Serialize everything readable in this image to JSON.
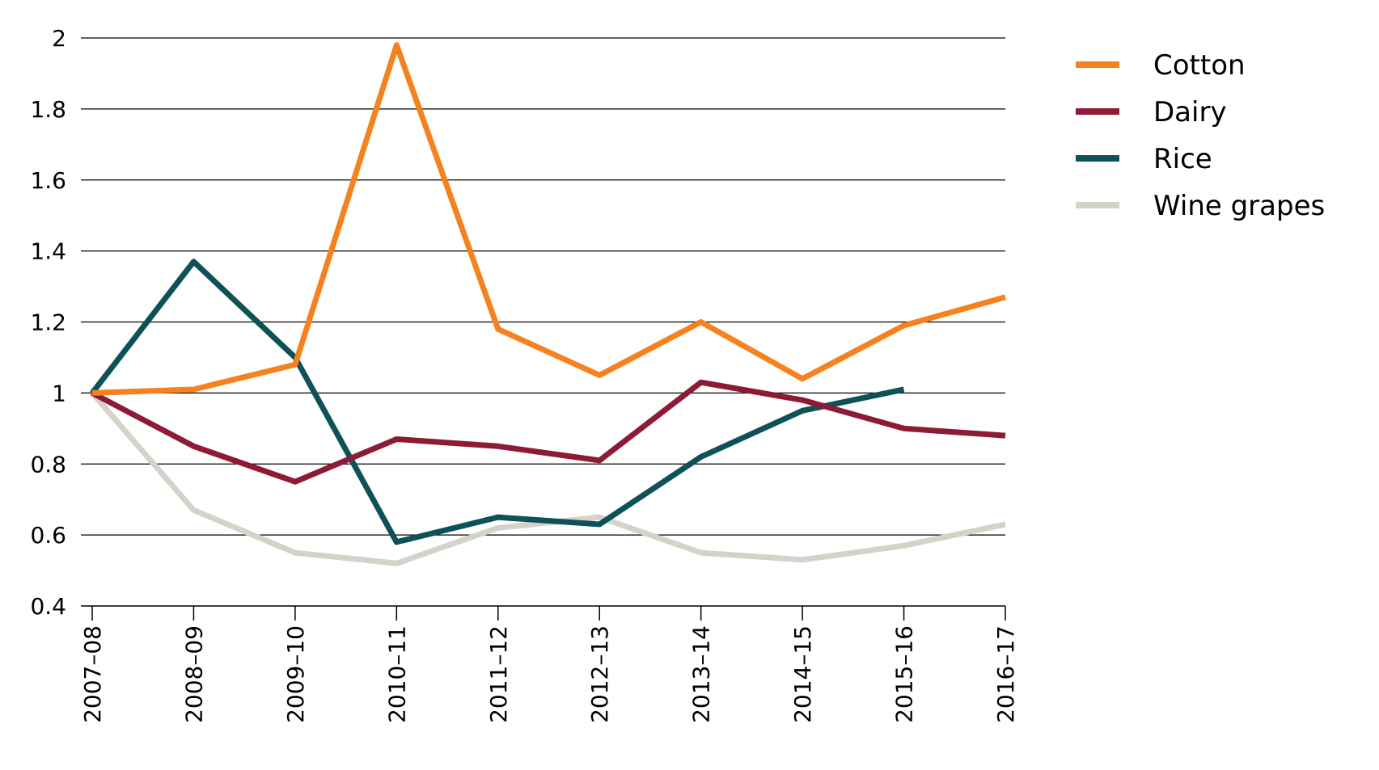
{
  "chart_data": {
    "type": "line",
    "title": "",
    "xlabel": "",
    "ylabel": "",
    "categories": [
      "2007–08",
      "2008–09",
      "2009–10",
      "2010–11",
      "2011–12",
      "2012–13",
      "2013–14",
      "2014–15",
      "2015–16",
      "2016–17"
    ],
    "ylim": [
      0.4,
      2
    ],
    "yticks": [
      0.4,
      0.6,
      0.8,
      1,
      1.2,
      1.4,
      1.6,
      1.8,
      2
    ],
    "ytick_labels": [
      "0.4",
      "0.6",
      "0.8",
      "1",
      "1.2",
      "1.4",
      "1.6",
      "1.8",
      "2"
    ],
    "grid": true,
    "legend_position": "right",
    "series": [
      {
        "name": "Cotton",
        "color": "#F5821F",
        "values": [
          1.0,
          1.01,
          1.08,
          1.98,
          1.18,
          1.05,
          1.2,
          1.04,
          1.19,
          1.27
        ]
      },
      {
        "name": "Dairy",
        "color": "#8E1B35",
        "values": [
          1.0,
          0.85,
          0.75,
          0.87,
          0.85,
          0.81,
          1.03,
          0.98,
          0.9,
          0.88
        ]
      },
      {
        "name": "Rice",
        "color": "#0E5158",
        "values": [
          1.0,
          1.37,
          1.1,
          0.58,
          0.65,
          0.63,
          0.82,
          0.95,
          1.01,
          null
        ]
      },
      {
        "name": "Wine grapes",
        "color": "#D5D2C9",
        "values": [
          1.0,
          0.67,
          0.55,
          0.52,
          0.62,
          0.65,
          0.55,
          0.53,
          0.57,
          0.63
        ]
      }
    ]
  }
}
